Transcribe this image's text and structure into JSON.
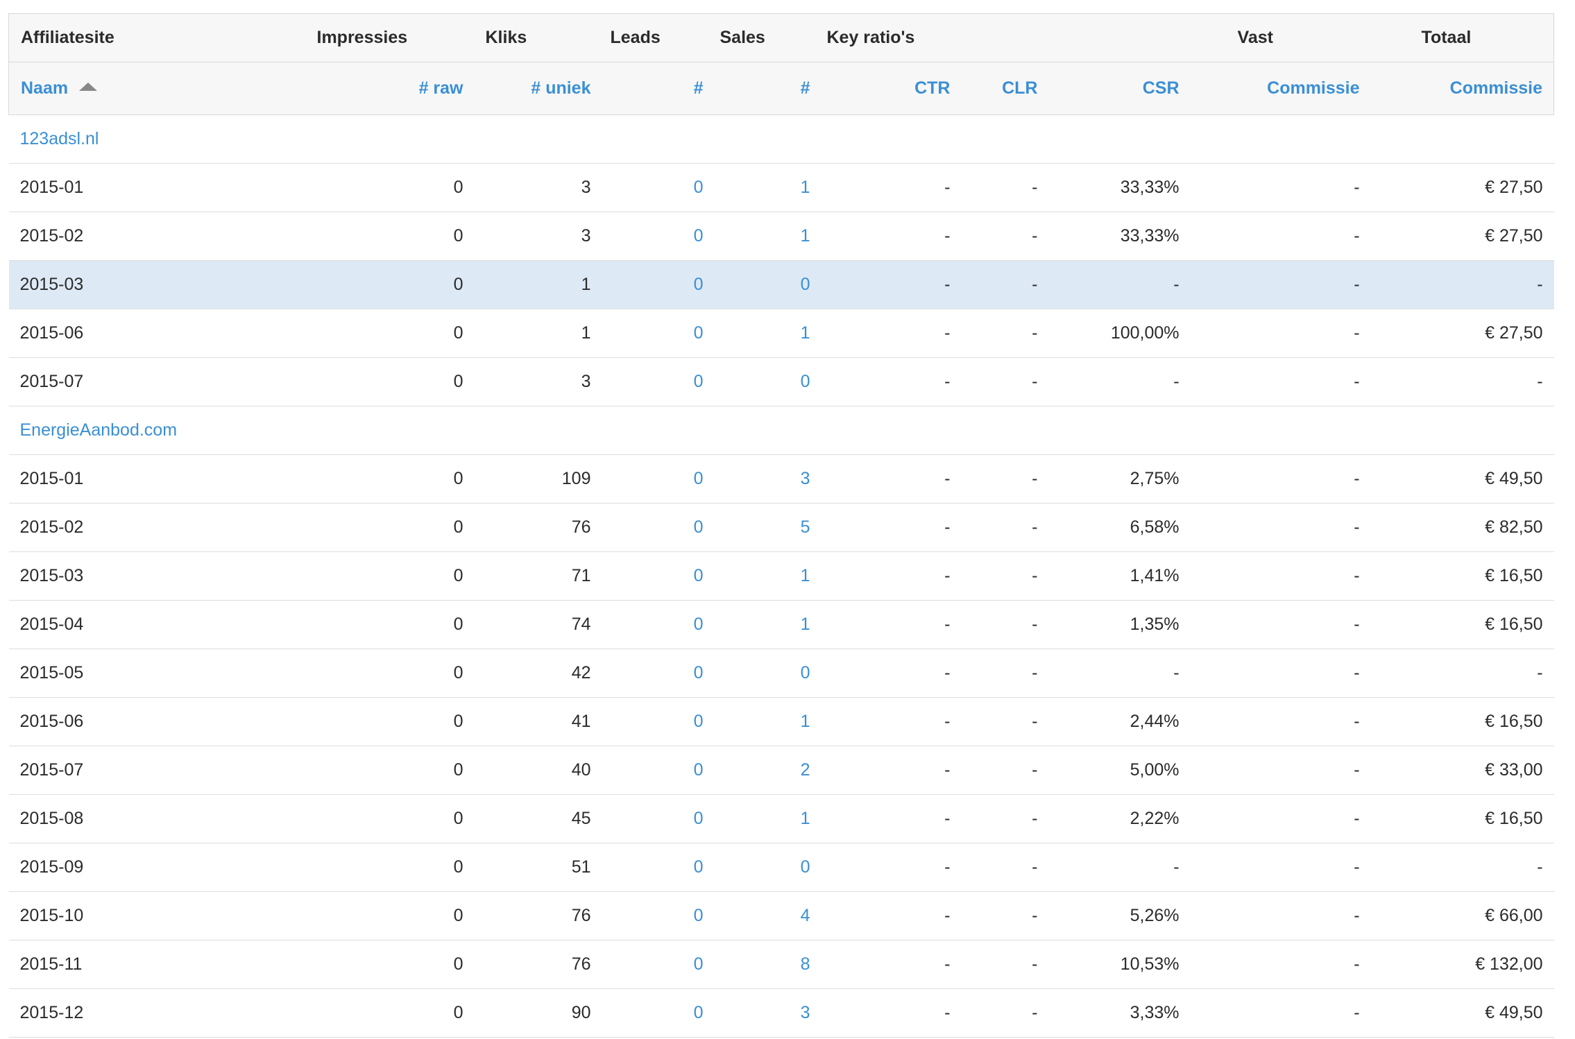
{
  "header": {
    "groups": {
      "affiliatesite": "Affiliatesite",
      "impressies": "Impressies",
      "kliks": "Kliks",
      "leads": "Leads",
      "sales": "Sales",
      "key_ratios": "Key ratio's",
      "vast": "Vast",
      "totaal": "Totaal"
    },
    "columns": {
      "naam": "Naam",
      "raw": "# raw",
      "uniek": "# uniek",
      "leads_count": "#",
      "sales_count": "#",
      "ctr": "CTR",
      "clr": "CLR",
      "csr": "CSR",
      "vast_commissie": "Commissie",
      "totaal_commissie": "Commissie"
    }
  },
  "sites": [
    {
      "name": "123adsl.nl",
      "rows": [
        {
          "period": "2015-01",
          "raw": "0",
          "uniek": "3",
          "leads": "0",
          "sales": "1",
          "ctr": "-",
          "clr": "-",
          "csr": "33,33%",
          "vast": "-",
          "totaal": "€ 27,50"
        },
        {
          "period": "2015-02",
          "raw": "0",
          "uniek": "3",
          "leads": "0",
          "sales": "1",
          "ctr": "-",
          "clr": "-",
          "csr": "33,33%",
          "vast": "-",
          "totaal": "€ 27,50"
        },
        {
          "period": "2015-03",
          "raw": "0",
          "uniek": "1",
          "leads": "0",
          "sales": "0",
          "ctr": "-",
          "clr": "-",
          "csr": "-",
          "vast": "-",
          "totaal": "-",
          "highlight": true
        },
        {
          "period": "2015-06",
          "raw": "0",
          "uniek": "1",
          "leads": "0",
          "sales": "1",
          "ctr": "-",
          "clr": "-",
          "csr": "100,00%",
          "vast": "-",
          "totaal": "€ 27,50"
        },
        {
          "period": "2015-07",
          "raw": "0",
          "uniek": "3",
          "leads": "0",
          "sales": "0",
          "ctr": "-",
          "clr": "-",
          "csr": "-",
          "vast": "-",
          "totaal": "-"
        }
      ]
    },
    {
      "name": "EnergieAanbod.com",
      "rows": [
        {
          "period": "2015-01",
          "raw": "0",
          "uniek": "109",
          "leads": "0",
          "sales": "3",
          "ctr": "-",
          "clr": "-",
          "csr": "2,75%",
          "vast": "-",
          "totaal": "€ 49,50"
        },
        {
          "period": "2015-02",
          "raw": "0",
          "uniek": "76",
          "leads": "0",
          "sales": "5",
          "ctr": "-",
          "clr": "-",
          "csr": "6,58%",
          "vast": "-",
          "totaal": "€ 82,50"
        },
        {
          "period": "2015-03",
          "raw": "0",
          "uniek": "71",
          "leads": "0",
          "sales": "1",
          "ctr": "-",
          "clr": "-",
          "csr": "1,41%",
          "vast": "-",
          "totaal": "€ 16,50"
        },
        {
          "period": "2015-04",
          "raw": "0",
          "uniek": "74",
          "leads": "0",
          "sales": "1",
          "ctr": "-",
          "clr": "-",
          "csr": "1,35%",
          "vast": "-",
          "totaal": "€ 16,50"
        },
        {
          "period": "2015-05",
          "raw": "0",
          "uniek": "42",
          "leads": "0",
          "sales": "0",
          "ctr": "-",
          "clr": "-",
          "csr": "-",
          "vast": "-",
          "totaal": "-"
        },
        {
          "period": "2015-06",
          "raw": "0",
          "uniek": "41",
          "leads": "0",
          "sales": "1",
          "ctr": "-",
          "clr": "-",
          "csr": "2,44%",
          "vast": "-",
          "totaal": "€ 16,50"
        },
        {
          "period": "2015-07",
          "raw": "0",
          "uniek": "40",
          "leads": "0",
          "sales": "2",
          "ctr": "-",
          "clr": "-",
          "csr": "5,00%",
          "vast": "-",
          "totaal": "€ 33,00"
        },
        {
          "period": "2015-08",
          "raw": "0",
          "uniek": "45",
          "leads": "0",
          "sales": "1",
          "ctr": "-",
          "clr": "-",
          "csr": "2,22%",
          "vast": "-",
          "totaal": "€ 16,50"
        },
        {
          "period": "2015-09",
          "raw": "0",
          "uniek": "51",
          "leads": "0",
          "sales": "0",
          "ctr": "-",
          "clr": "-",
          "csr": "-",
          "vast": "-",
          "totaal": "-"
        },
        {
          "period": "2015-10",
          "raw": "0",
          "uniek": "76",
          "leads": "0",
          "sales": "4",
          "ctr": "-",
          "clr": "-",
          "csr": "5,26%",
          "vast": "-",
          "totaal": "€ 66,00"
        },
        {
          "period": "2015-11",
          "raw": "0",
          "uniek": "76",
          "leads": "0",
          "sales": "8",
          "ctr": "-",
          "clr": "-",
          "csr": "10,53%",
          "vast": "-",
          "totaal": "€ 132,00"
        },
        {
          "period": "2015-12",
          "raw": "0",
          "uniek": "90",
          "leads": "0",
          "sales": "3",
          "ctr": "-",
          "clr": "-",
          "csr": "3,33%",
          "vast": "-",
          "totaal": "€ 49,50"
        }
      ]
    }
  ],
  "colors": {
    "link": "#3a8fd4",
    "header_bg": "#f7f7f7",
    "highlight_row": "#dde9f5"
  }
}
